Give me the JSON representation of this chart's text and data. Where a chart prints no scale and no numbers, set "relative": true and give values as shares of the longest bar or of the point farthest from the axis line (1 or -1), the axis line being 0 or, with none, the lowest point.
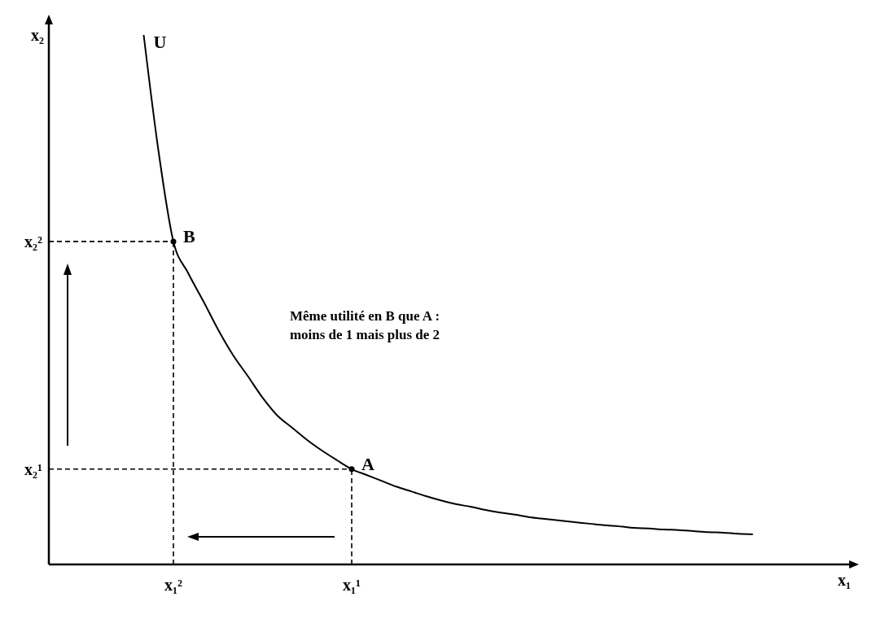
{
  "chart_data": {
    "type": "line",
    "relative": true,
    "xlabel": "x₁",
    "categories": [
      null,
      null,
      "x₁²",
      null,
      null,
      null,
      null,
      null,
      null,
      null,
      null,
      null,
      null,
      null,
      "x₁¹",
      null,
      null,
      null,
      null,
      null,
      null,
      null,
      null,
      null,
      null,
      null,
      null,
      null,
      null,
      null,
      null,
      null,
      null,
      null,
      null,
      null,
      null,
      null,
      null,
      null,
      null,
      null
    ],
    "series": [
      {
        "name": "U",
        "type": "line",
        "color": "#000000",
        "values": [
          1,
          0.78,
          0.61,
          0.55,
          0.498,
          0.444,
          0.396,
          0.356,
          0.315,
          0.281,
          0.258,
          0.235,
          0.215,
          0.197,
          0.18,
          0.169,
          0.158,
          0.147,
          0.138,
          0.129,
          0.121,
          0.114,
          0.109,
          0.103,
          0.098,
          0.094,
          0.089,
          0.086,
          0.083,
          0.08,
          0.077,
          0.074,
          0.072,
          0.069,
          0.068,
          0.066,
          0.065,
          0.063,
          0.061,
          0.06,
          0.058,
          0.057
        ]
      },
      {
        "type": "scatter",
        "color": "#000000",
        "x": [
          "x₁²",
          "x₁¹"
        ],
        "values": [
          0.61,
          0.18
        ]
      }
    ],
    "ref_lines": [
      {
        "axis": "y",
        "value": 0.61,
        "label": "x₂²",
        "line_style": "dashed"
      },
      {
        "axis": "y",
        "value": 0.18,
        "label": "x₂¹",
        "line_style": "dashed"
      }
    ],
    "annotations": [
      {
        "text": "B",
        "x": "x₁²",
        "y": 0.61
      },
      {
        "text": "A",
        "x": "x₁¹",
        "y": 0.18
      },
      "x₂",
      "Même utilité en B que A :\nmoins de 1 mais plus de 2"
    ]
  }
}
